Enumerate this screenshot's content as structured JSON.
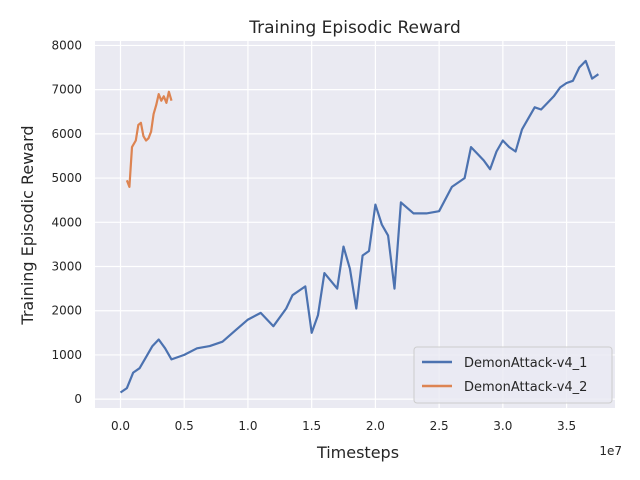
{
  "chart_data": {
    "type": "line",
    "title": "Training Episodic Reward",
    "xlabel": "Timesteps",
    "ylabel": "Training Episodic Reward",
    "x_offset_label": "1e7",
    "xlim": [
      -0.2,
      3.88
    ],
    "ylim": [
      -200,
      8100
    ],
    "x_ticks": [
      0.0,
      0.5,
      1.0,
      1.5,
      2.0,
      2.5,
      3.0,
      3.5
    ],
    "x_tick_labels": [
      "0.0",
      "0.5",
      "1.0",
      "1.5",
      "2.0",
      "2.5",
      "3.0",
      "3.5"
    ],
    "y_ticks": [
      0,
      1000,
      2000,
      3000,
      4000,
      5000,
      6000,
      7000,
      8000
    ],
    "y_tick_labels": [
      "0",
      "1000",
      "2000",
      "3000",
      "4000",
      "5000",
      "6000",
      "7000",
      "8000"
    ],
    "grid": true,
    "legend_position": "lower-right",
    "series": [
      {
        "name": "DemonAttack-v4_1",
        "color": "#4c72b0",
        "x": [
          0.0,
          0.05,
          0.1,
          0.15,
          0.2,
          0.25,
          0.3,
          0.35,
          0.4,
          0.5,
          0.6,
          0.7,
          0.8,
          0.9,
          1.0,
          1.1,
          1.2,
          1.3,
          1.35,
          1.45,
          1.5,
          1.55,
          1.6,
          1.7,
          1.75,
          1.8,
          1.85,
          1.9,
          1.95,
          2.0,
          2.05,
          2.1,
          2.15,
          2.2,
          2.3,
          2.4,
          2.5,
          2.6,
          2.7,
          2.75,
          2.8,
          2.85,
          2.9,
          2.95,
          3.0,
          3.05,
          3.1,
          3.15,
          3.2,
          3.25,
          3.3,
          3.35,
          3.4,
          3.45,
          3.5,
          3.55,
          3.6,
          3.65,
          3.7,
          3.75
        ],
        "values": [
          150,
          250,
          600,
          700,
          950,
          1200,
          1350,
          1150,
          900,
          1000,
          1150,
          1200,
          1300,
          1550,
          1800,
          1950,
          1650,
          2050,
          2350,
          2550,
          1500,
          1900,
          2850,
          2500,
          3450,
          2950,
          2050,
          3250,
          3350,
          4400,
          3950,
          3700,
          2500,
          4450,
          4200,
          4200,
          4250,
          4800,
          5000,
          5700,
          5550,
          5400,
          5200,
          5600,
          5850,
          5700,
          5600,
          6100,
          6350,
          6600,
          6550,
          6700,
          6850,
          7050,
          7150,
          7200,
          7500,
          7650,
          7250,
          7350
        ]
      },
      {
        "name": "DemonAttack-v4_2",
        "color": "#dd8452",
        "x": [
          0.05,
          0.07,
          0.09,
          0.12,
          0.14,
          0.16,
          0.18,
          0.2,
          0.22,
          0.24,
          0.26,
          0.28,
          0.3,
          0.32,
          0.34,
          0.36,
          0.38,
          0.4
        ],
        "values": [
          4950,
          4800,
          5700,
          5850,
          6200,
          6250,
          5950,
          5850,
          5900,
          6050,
          6450,
          6650,
          6900,
          6750,
          6850,
          6700,
          6950,
          6750
        ]
      }
    ]
  }
}
